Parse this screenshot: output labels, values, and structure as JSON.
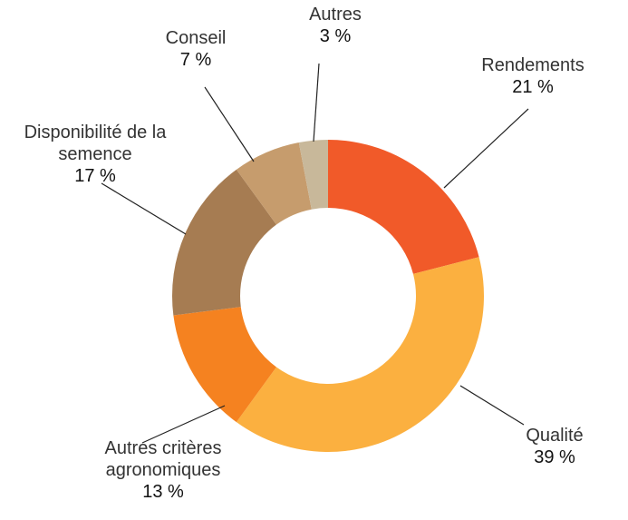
{
  "chart_data": {
    "type": "donut",
    "categories": [
      "Rendements",
      "Qualité",
      "Autres critères agronomiques",
      "Disponibilité de la semence",
      "Conseil",
      "Autres"
    ],
    "values": [
      21,
      39,
      13,
      17,
      7,
      3
    ],
    "value_labels": [
      "21 %",
      "39 %",
      "13 %",
      "17 %",
      "7 %",
      "3 %"
    ],
    "colors": [
      "#f15a29",
      "#fbb040",
      "#f58220",
      "#a67c52",
      "#c69c6d",
      "#c8b89a"
    ]
  }
}
